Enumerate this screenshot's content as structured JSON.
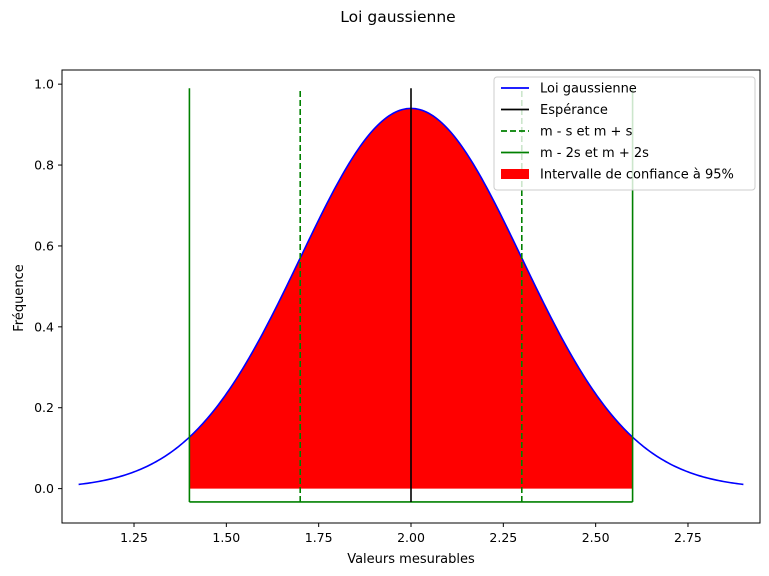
{
  "chart_data": {
    "type": "line",
    "title": "Loi gaussienne",
    "xlabel": "Valeurs mesurables",
    "ylabel": "Fréquence",
    "xlim": [
      1.055,
      2.945
    ],
    "ylim": [
      -0.085,
      1.035
    ],
    "xticks": [
      1.25,
      1.5,
      1.75,
      2.0,
      2.25,
      2.5,
      2.75
    ],
    "xtick_labels": [
      "1.25",
      "1.50",
      "1.75",
      "2.00",
      "2.25",
      "2.50",
      "2.75"
    ],
    "yticks": [
      0.0,
      0.2,
      0.4,
      0.6,
      0.8,
      1.0
    ],
    "ytick_labels": [
      "0.0",
      "0.2",
      "0.4",
      "0.6",
      "0.8",
      "1.0"
    ],
    "grid": false,
    "legend_position": "top-right",
    "mean": 2.0,
    "sigma": 0.3,
    "gauss_domain": [
      1.1,
      2.9
    ],
    "gauss_peak": 0.94,
    "interval": [
      1.4,
      2.6
    ],
    "vertical_lines": {
      "mean_x": 2.0,
      "sigma_x": [
        1.7,
        2.3
      ],
      "two_sigma_x": [
        1.4,
        2.6
      ],
      "y_range": [
        -0.033,
        0.99
      ]
    },
    "series": [
      {
        "name": "Loi gaussienne",
        "color": "#0000ff",
        "style": "solid",
        "kind": "line"
      },
      {
        "name": "Espérance",
        "color": "#000000",
        "style": "solid",
        "kind": "line"
      },
      {
        "name": "m - s et m + s",
        "color": "#008000",
        "style": "dashed",
        "kind": "line"
      },
      {
        "name": "m - 2s et m + 2s",
        "color": "#008000",
        "style": "solid",
        "kind": "line"
      },
      {
        "name": "Intervalle de confiance à 95%",
        "color": "#ff0000",
        "style": "fill",
        "kind": "patch"
      }
    ]
  }
}
